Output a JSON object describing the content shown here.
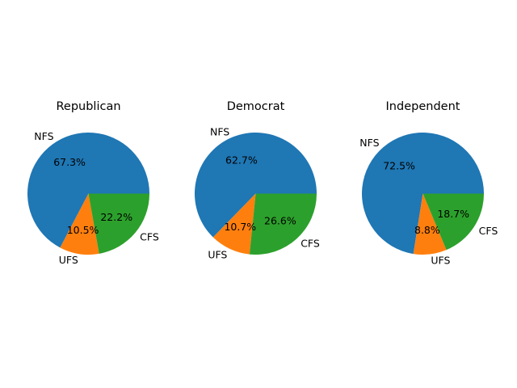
{
  "chart_data": [
    {
      "type": "pie",
      "title": "Republican",
      "categories": [
        "NFS",
        "UFS",
        "CFS"
      ],
      "values": [
        67.3,
        10.5,
        22.2
      ],
      "value_labels": [
        "67.3%",
        "10.5%",
        "22.2%"
      ]
    },
    {
      "type": "pie",
      "title": "Democrat",
      "categories": [
        "NFS",
        "UFS",
        "CFS"
      ],
      "values": [
        62.7,
        10.7,
        26.6
      ],
      "value_labels": [
        "62.7%",
        "10.7%",
        "26.6%"
      ]
    },
    {
      "type": "pie",
      "title": "Independent",
      "categories": [
        "NFS",
        "UFS",
        "CFS"
      ],
      "values": [
        72.5,
        8.8,
        18.7
      ],
      "value_labels": [
        "72.5%",
        "8.8%",
        "18.7%"
      ]
    }
  ],
  "colors": [
    "#1f77b4",
    "#ff7f0e",
    "#2ca02c"
  ]
}
